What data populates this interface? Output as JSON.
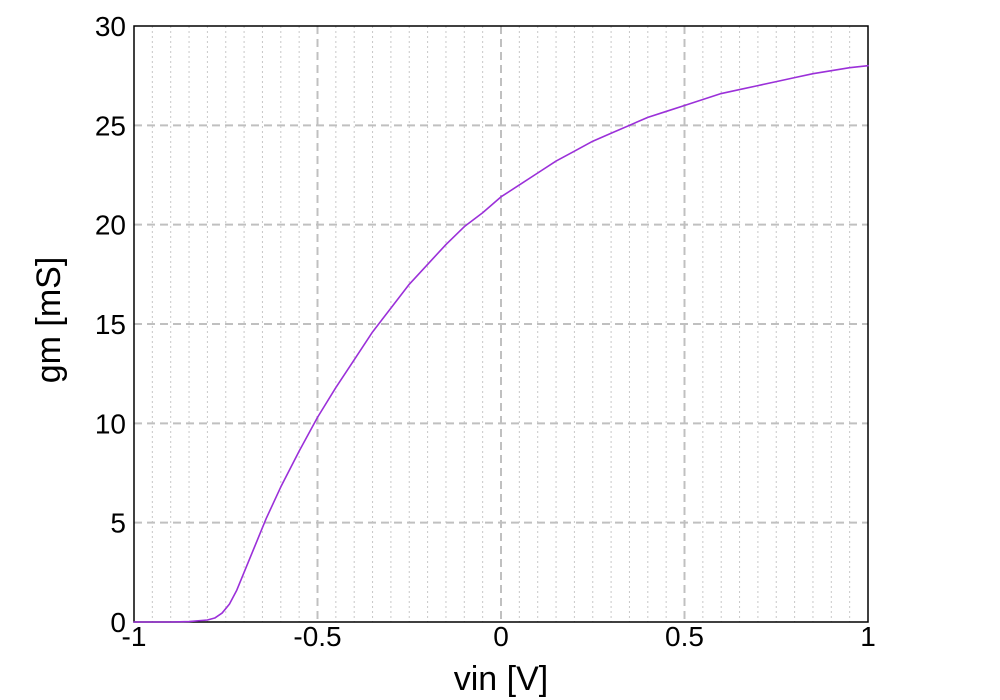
{
  "chart_data": {
    "type": "line",
    "xlabel": "vin [V]",
    "ylabel": "gm [mS]",
    "xlim": [
      -1,
      1
    ],
    "ylim": [
      0,
      30
    ],
    "grid": true,
    "x_ticks": [
      -1,
      -0.5,
      0,
      0.5,
      1
    ],
    "x_tick_labels": [
      "-1",
      "-0.5",
      "0",
      "0.5",
      "1"
    ],
    "y_ticks": [
      0,
      5,
      10,
      15,
      20,
      25,
      30
    ],
    "y_tick_labels": [
      "0",
      "5",
      "10",
      "15",
      "20",
      "25",
      "30"
    ],
    "x_minor_step": 0.05,
    "series": [
      {
        "color": "#9b30d9",
        "x": [
          -1.0,
          -0.95,
          -0.9,
          -0.85,
          -0.8,
          -0.78,
          -0.76,
          -0.74,
          -0.72,
          -0.7,
          -0.68,
          -0.66,
          -0.64,
          -0.62,
          -0.6,
          -0.55,
          -0.5,
          -0.45,
          -0.4,
          -0.35,
          -0.3,
          -0.25,
          -0.2,
          -0.15,
          -0.1,
          -0.05,
          0.0,
          0.05,
          0.1,
          0.15,
          0.2,
          0.25,
          0.3,
          0.35,
          0.4,
          0.45,
          0.5,
          0.55,
          0.6,
          0.65,
          0.7,
          0.75,
          0.8,
          0.85,
          0.9,
          0.95,
          1.0
        ],
        "y": [
          0.0,
          0.0,
          0.0,
          0.02,
          0.1,
          0.2,
          0.45,
          0.9,
          1.6,
          2.5,
          3.4,
          4.3,
          5.2,
          6.0,
          6.8,
          8.6,
          10.3,
          11.8,
          13.2,
          14.6,
          15.8,
          17.0,
          18.0,
          19.0,
          19.9,
          20.6,
          21.4,
          22.0,
          22.6,
          23.2,
          23.7,
          24.2,
          24.6,
          25.0,
          25.4,
          25.7,
          26.0,
          26.3,
          26.6,
          26.8,
          27.0,
          27.2,
          27.4,
          27.6,
          27.75,
          27.9,
          28.0
        ]
      }
    ]
  }
}
